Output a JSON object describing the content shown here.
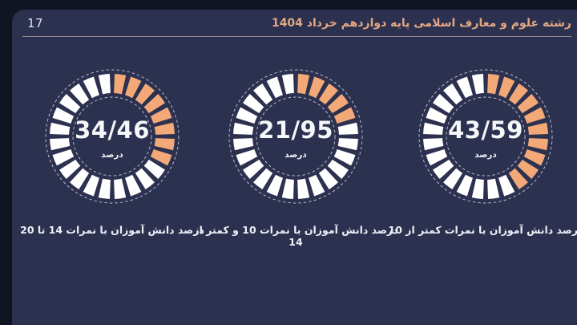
{
  "header": {
    "page_number": "17",
    "title": "رشته علوم و معارف اسلامی پایه دوازدهم خرداد 1404"
  },
  "colors": {
    "background": "#111522",
    "panel": "#2d3150",
    "accent_orange": "#f2a977",
    "segment_white": "#ffffff",
    "dash_ring": "#ccd1dd",
    "title_peach": "#e2a882",
    "divider": "#958a90",
    "text": "#f6f7fa"
  },
  "chart_data": [
    {
      "type": "pie",
      "style": "segmented-donut-gauge",
      "center_value": "34/46",
      "center_unit": "درصد",
      "percent": 34.46,
      "segments_total": 24,
      "segments_filled": 8,
      "caption": "درصد دانش آموزان با نمرات 14 تا 20",
      "slices": [
        {
          "label": "filled",
          "value": 34.46,
          "color": "#f2a977"
        },
        {
          "label": "remainder",
          "value": 65.54,
          "color": "#ffffff"
        }
      ]
    },
    {
      "type": "pie",
      "style": "segmented-donut-gauge",
      "center_value": "21/95",
      "center_unit": "درصد",
      "percent": 21.95,
      "segments_total": 24,
      "segments_filled": 5,
      "caption": "درصد دانش آموزان با نمرات 10 و کمتر از 14",
      "slices": [
        {
          "label": "filled",
          "value": 21.95,
          "color": "#f2a977"
        },
        {
          "label": "remainder",
          "value": 78.05,
          "color": "#ffffff"
        }
      ]
    },
    {
      "type": "pie",
      "style": "segmented-donut-gauge",
      "center_value": "43/59",
      "center_unit": "درصد",
      "percent": 43.59,
      "segments_total": 24,
      "segments_filled": 10,
      "caption": "درصد دانش آموزان با نمرات کمتر از 10",
      "slices": [
        {
          "label": "filled",
          "value": 43.59,
          "color": "#f2a977"
        },
        {
          "label": "remainder",
          "value": 56.41,
          "color": "#ffffff"
        }
      ]
    }
  ]
}
